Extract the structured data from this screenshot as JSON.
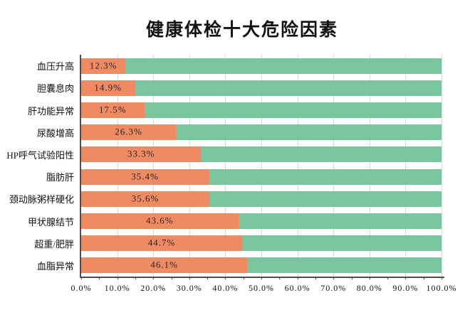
{
  "title": "健康体检十大危险因素",
  "colors": {
    "bar": "#ef8b63",
    "remainder": "#79c69e",
    "gridline": "#d9d9d9",
    "axis": "#4d4d4d",
    "text": "#111111",
    "background": "#ffffff"
  },
  "chart_data": {
    "type": "bar",
    "orientation": "horizontal",
    "stacked_to_100_percent": true,
    "title": "健康体检十大危险因素",
    "xlabel": "",
    "ylabel": "",
    "categories": [
      "血压升高",
      "胆囊息肉",
      "肝功能异常",
      "尿酸增高",
      "HP呼气试验阳性",
      "脂肪肝",
      "颈动脉粥样硬化",
      "甲状腺结节",
      "超重/肥胖",
      "血脂异常"
    ],
    "values": [
      12.3,
      14.9,
      17.5,
      26.3,
      33.3,
      35.4,
      35.6,
      43.6,
      44.7,
      46.1
    ],
    "value_labels": [
      "12.3%",
      "14.9%",
      "17.5%",
      "26.3%",
      "33.3%",
      "35.4%",
      "35.6%",
      "43.6%",
      "44.7%",
      "46.1%"
    ],
    "xlim": [
      0,
      100
    ],
    "x_tick_labels": [
      "0.0%",
      "10.0%",
      "20.0%",
      "30.0%",
      "40.0%",
      "50.0%",
      "60.0%",
      "70.0%",
      "80.0%",
      "90.0%",
      "100.0%"
    ],
    "x_major_step": 10,
    "x_minor_step": 5,
    "grid": true,
    "legend_position": "none"
  }
}
